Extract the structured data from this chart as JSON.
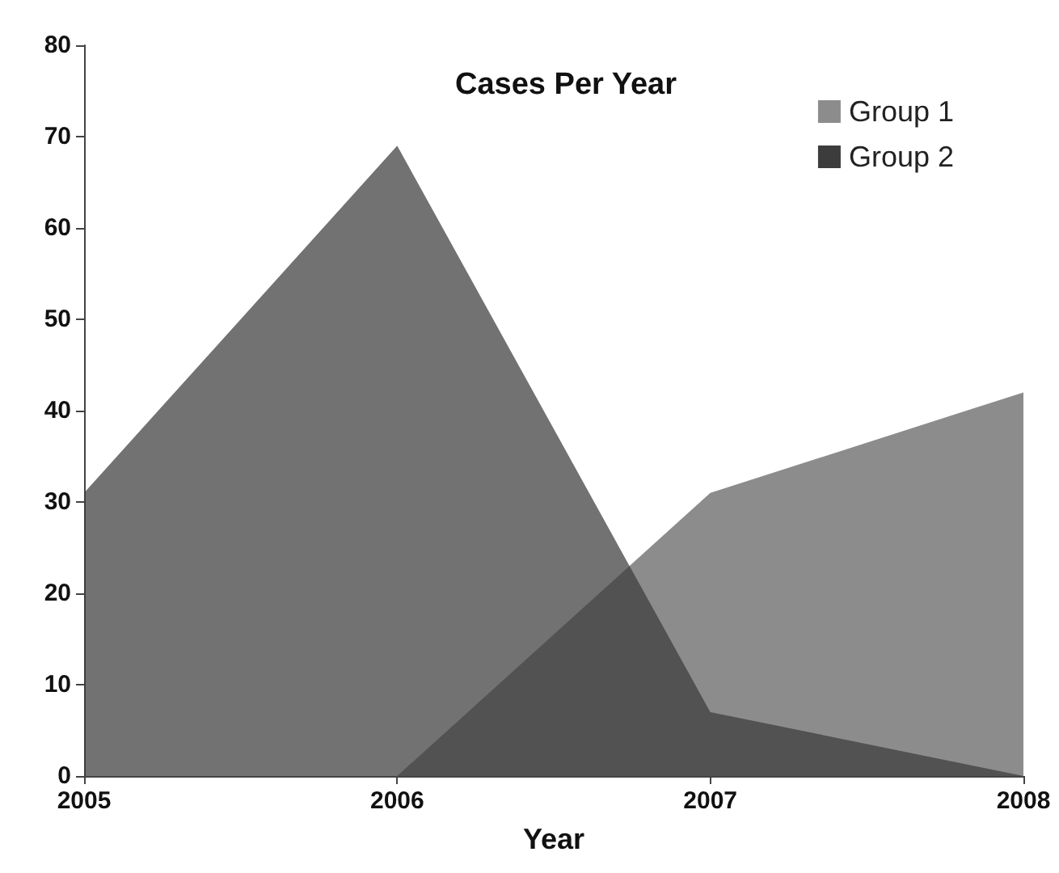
{
  "chart_data": {
    "type": "area",
    "title": "Cases Per Year",
    "xlabel": "Year",
    "categories": [
      "2005",
      "2006",
      "2007",
      "2008"
    ],
    "series": [
      {
        "name": "Group 1",
        "color": "#8c8c8c",
        "values": [
          0,
          0,
          31,
          42
        ]
      },
      {
        "name": "Group 2",
        "color": "#3c3c3c",
        "values": [
          31,
          69,
          7,
          0
        ]
      }
    ],
    "ylim": [
      0,
      80
    ],
    "yticks": [
      0,
      10,
      20,
      30,
      40,
      50,
      60,
      70,
      80
    ],
    "grid": false,
    "legend": "top right",
    "marker": "none"
  }
}
